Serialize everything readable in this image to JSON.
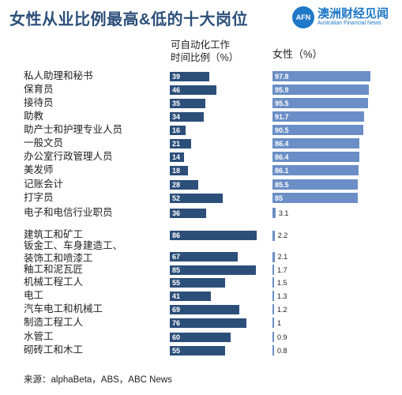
{
  "title": "女性从业比例最高&低的十大岗位",
  "logo": {
    "mark": "AFN",
    "name_cn": "澳洲财经见闻",
    "name_en": "Australian Financial News"
  },
  "headers": {
    "automation_line1": "可自动化工作",
    "automation_line2": "时间比例（%）",
    "female": "女性（%）"
  },
  "source": "来源：alphaBeta，ABS，ABC News",
  "chart_data": {
    "type": "bar",
    "title": "女性从业比例最高&低的十大岗位",
    "categories": [
      "私人助理和秘书",
      "保育员",
      "接待员",
      "助教",
      "助产士和护理专业人员",
      "一般文员",
      "办公室行政管理人员",
      "美发师",
      "记账会计",
      "打字员",
      "电子和电信行业职员",
      "建筑工和矿工",
      "钣金工、车身建造工、装饰工和喷漆工",
      "釉工和泥瓦匠",
      "机械工程工人",
      "电工",
      "汽车电工和机械工",
      "制造工程工人",
      "水管工",
      "砌砖工和木工"
    ],
    "series": [
      {
        "name": "可自动化工作时间比例（%）",
        "values": [
          39,
          46,
          35,
          34,
          16,
          21,
          14,
          18,
          28,
          52,
          36,
          86,
          67,
          85,
          55,
          41,
          69,
          76,
          60,
          55
        ]
      },
      {
        "name": "女性（%）",
        "values": [
          97.8,
          95.9,
          95.5,
          91.7,
          90.5,
          86.4,
          86.4,
          86.1,
          85.5,
          85,
          3.1,
          2.2,
          2.1,
          1.7,
          1.5,
          1.3,
          1.2,
          1,
          0.9,
          0.8
        ]
      }
    ],
    "female_labels": [
      "97.8",
      "95.9",
      "95.5",
      "91.7",
      "90.5",
      "86.4",
      "86.4",
      "86.1",
      "85.5",
      "85",
      "3.1",
      "2.2",
      "2.1",
      "1.7",
      "1.5",
      "1.3",
      "1.2",
      "1",
      "0.9",
      "0.8"
    ],
    "colors": {
      "automation": "#2c4f7a",
      "female": "#6a8ec5",
      "title": "#2c4f7a"
    }
  }
}
